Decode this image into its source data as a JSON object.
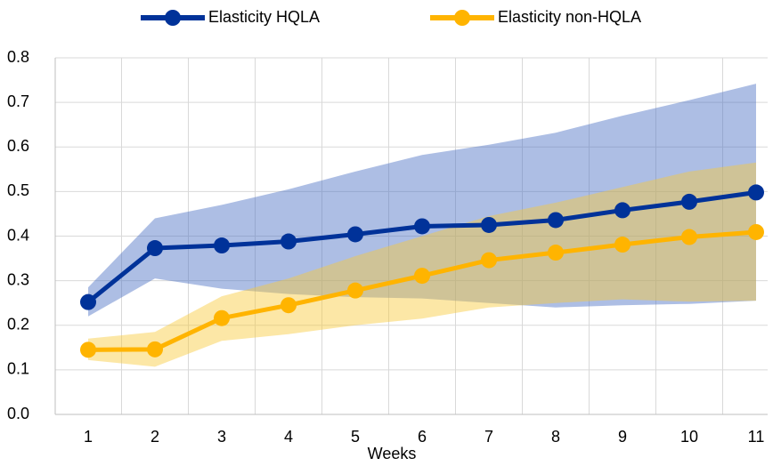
{
  "chart_data": {
    "type": "line",
    "x_label": "Weeks",
    "categories": [
      "1",
      "2",
      "3",
      "4",
      "5",
      "6",
      "7",
      "8",
      "9",
      "10",
      "11"
    ],
    "ylim": [
      0,
      0.8
    ],
    "yticks": [
      {
        "value": 0,
        "label": "0.0"
      },
      0.1,
      0.2,
      0.3,
      0.4,
      0.5,
      0.6,
      0.7,
      0.8
    ],
    "grid": true,
    "legend": "top",
    "series": [
      {
        "name": "Elasticity HQLA",
        "color": "#003299",
        "values": [
          0.252,
          0.373,
          0.379,
          0.388,
          0.404,
          0.422,
          0.425,
          0.436,
          0.458,
          0.477,
          0.498
        ],
        "band_upper": [
          0.285,
          0.44,
          0.47,
          0.505,
          0.545,
          0.582,
          0.605,
          0.632,
          0.67,
          0.705,
          0.742
        ],
        "band_lower": [
          0.22,
          0.305,
          0.282,
          0.27,
          0.263,
          0.26,
          0.25,
          0.24,
          0.245,
          0.248,
          0.255
        ],
        "band_color": "#4a6fc4"
      },
      {
        "name": "Elasticity non-HQLA",
        "color": "#ffb400",
        "values": [
          0.145,
          0.146,
          0.216,
          0.245,
          0.278,
          0.311,
          0.346,
          0.363,
          0.381,
          0.398,
          0.409
        ],
        "band_upper": [
          0.17,
          0.185,
          0.265,
          0.305,
          0.355,
          0.4,
          0.445,
          0.475,
          0.51,
          0.545,
          0.565
        ],
        "band_lower": [
          0.122,
          0.107,
          0.165,
          0.18,
          0.2,
          0.215,
          0.24,
          0.25,
          0.258,
          0.253,
          0.255
        ],
        "band_color": "#f9c93a"
      }
    ]
  }
}
